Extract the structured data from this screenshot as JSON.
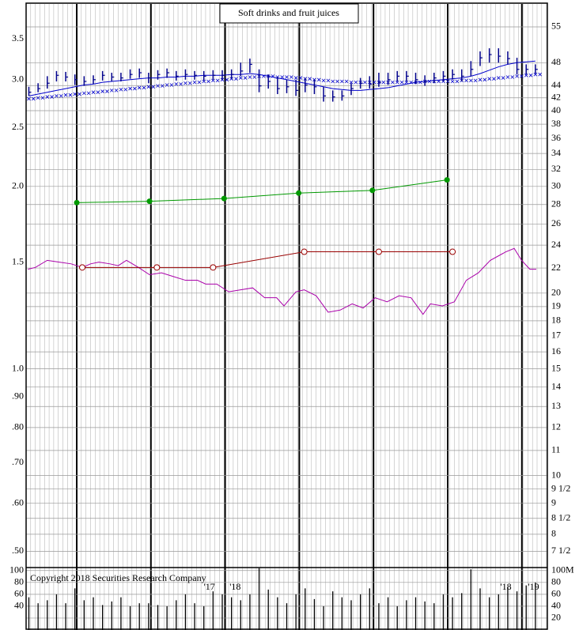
{
  "chart_data": {
    "type": "stock",
    "title": "Soft drinks and fruit juices",
    "annotation": "Copyright 2018 Securities Research Company",
    "log_scale": true,
    "grid": true,
    "xlim": [
      -0.3,
      56.3
    ],
    "xticks": [
      {
        "value": 19.6,
        "label": "'17"
      },
      {
        "value": 22.4,
        "label": "'18"
      },
      {
        "value": 51.8,
        "label": "'18"
      },
      {
        "value": 54.8,
        "label": "'19"
      }
    ],
    "ylim": [
      0.47,
      4.0
    ],
    "yticks": [
      3.5,
      {
        "value": 3,
        "label": "3.0"
      },
      2.5,
      {
        "value": 2,
        "label": "2.0"
      },
      1.5,
      {
        "value": 1,
        "label": "1.0"
      },
      {
        "value": 0.9,
        "label": ".90"
      },
      {
        "value": 0.8,
        "label": ".80"
      },
      {
        "value": 0.7,
        "label": ".70"
      },
      {
        "value": 0.6,
        "label": ".60"
      },
      {
        "value": 0.5,
        "label": ".50"
      }
    ],
    "y2lim": [
      7.05,
      60
    ],
    "y2ticks": [
      55,
      48,
      44,
      42,
      40,
      38,
      36,
      34,
      32,
      30,
      28,
      26,
      24,
      22,
      20,
      19,
      18,
      17,
      16,
      15,
      14,
      13,
      12,
      11,
      10,
      {
        "value": 9.5,
        "label": "9 1/2"
      },
      9,
      {
        "value": 8.5,
        "label": "8 1/2"
      },
      8,
      {
        "value": 7.5,
        "label": "7 1/2"
      }
    ],
    "x": [
      0,
      1,
      2,
      3,
      4,
      5,
      6,
      7,
      8,
      9,
      10,
      11,
      12,
      13,
      14,
      15,
      16,
      17,
      18,
      19,
      20,
      21,
      22,
      23,
      24,
      25,
      26,
      27,
      28,
      29,
      30,
      31,
      32,
      33,
      34,
      35,
      36,
      37,
      38,
      39,
      40,
      41,
      42,
      43,
      44,
      45,
      46,
      47,
      48,
      49,
      50,
      51,
      52,
      53,
      54,
      55
    ],
    "price": {
      "color": "#00008b",
      "high": [
        2.92,
        2.96,
        3.04,
        3.1,
        3.09,
        3.06,
        3.04,
        3.05,
        3.1,
        3.08,
        3.08,
        3.12,
        3.13,
        3.08,
        3.11,
        3.13,
        3.1,
        3.12,
        3.1,
        3.1,
        3.11,
        3.11,
        3.12,
        3.2,
        3.25,
        3.12,
        3.06,
        3.03,
        3.0,
        3.0,
        3.02,
        3.0,
        2.92,
        2.88,
        2.88,
        2.96,
        3.02,
        3.04,
        3.08,
        3.08,
        3.1,
        3.1,
        3.08,
        3.05,
        3.08,
        3.1,
        3.12,
        3.12,
        3.22,
        3.34,
        3.38,
        3.38,
        3.34,
        3.26,
        3.18,
        3.18
      ],
      "low": [
        2.82,
        2.86,
        2.9,
        2.98,
        2.98,
        2.94,
        2.93,
        2.95,
        2.99,
        2.98,
        2.98,
        3.01,
        3.02,
        2.96,
        3.0,
        3.02,
        2.99,
        3.0,
        3.0,
        2.99,
        3.0,
        3.0,
        3.01,
        3.04,
        3.08,
        2.86,
        2.9,
        2.84,
        2.85,
        2.82,
        2.86,
        2.84,
        2.76,
        2.76,
        2.77,
        2.83,
        2.9,
        2.9,
        2.92,
        2.94,
        2.98,
        2.98,
        2.95,
        2.93,
        2.96,
        2.98,
        3.0,
        2.98,
        3.04,
        3.16,
        3.2,
        3.2,
        3.18,
        3.06,
        3.06,
        3.07
      ],
      "close": [
        2.86,
        2.9,
        2.96,
        3.05,
        3.03,
        3.0,
        2.98,
        3.0,
        3.05,
        3.03,
        3.02,
        3.06,
        3.08,
        3.02,
        3.06,
        3.08,
        3.04,
        3.06,
        3.05,
        3.04,
        3.05,
        3.05,
        3.06,
        3.1,
        3.18,
        2.93,
        2.98,
        2.9,
        2.92,
        2.88,
        2.94,
        2.92,
        2.82,
        2.81,
        2.82,
        2.9,
        2.96,
        2.95,
        2.97,
        3.0,
        3.04,
        3.04,
        3.0,
        2.98,
        3.02,
        3.04,
        3.06,
        3.04,
        3.12,
        3.26,
        3.3,
        3.28,
        3.25,
        3.12,
        3.12,
        3.12
      ]
    },
    "moving_average": {
      "color": "#0000cc",
      "values": [
        2.82,
        2.84,
        2.86,
        2.88,
        2.9,
        2.92,
        2.94,
        2.95,
        2.97,
        2.98,
        2.99,
        3.0,
        3.01,
        3.02,
        3.02,
        3.03,
        3.03,
        3.04,
        3.04,
        3.05,
        3.05,
        3.05,
        3.06,
        3.06,
        3.07,
        3.06,
        3.04,
        3.02,
        3.0,
        2.98,
        2.96,
        2.94,
        2.92,
        2.9,
        2.89,
        2.88,
        2.88,
        2.89,
        2.9,
        2.91,
        2.93,
        2.95,
        2.97,
        2.98,
        2.99,
        3.0,
        3.01,
        3.02,
        3.04,
        3.07,
        3.11,
        3.15,
        3.18,
        3.2,
        3.21,
        3.22
      ]
    },
    "moving_average_2": {
      "color": "#0000cc",
      "values": [
        2.79,
        2.8,
        2.81,
        2.82,
        2.83,
        2.84,
        2.85,
        2.86,
        2.87,
        2.88,
        2.89,
        2.9,
        2.91,
        2.92,
        2.93,
        2.94,
        2.95,
        2.96,
        2.97,
        2.98,
        2.99,
        3.0,
        3.01,
        3.02,
        3.03,
        3.04,
        3.04,
        3.03,
        3.03,
        3.02,
        3.01,
        3.0,
        2.99,
        2.98,
        2.98,
        2.97,
        2.97,
        2.97,
        2.97,
        2.97,
        2.97,
        2.97,
        2.97,
        2.98,
        2.98,
        2.98,
        2.98,
        2.99,
        2.99,
        3.0,
        3.01,
        3.02,
        3.03,
        3.04,
        3.05,
        3.06
      ]
    },
    "earnings": {
      "color": "#009900",
      "x": [
        5.2,
        13.1,
        21.2,
        29.3,
        37.3,
        45.4
      ],
      "values": [
        1.88,
        1.89,
        1.91,
        1.95,
        1.97,
        2.05
      ]
    },
    "dividends": {
      "color": "#990000",
      "x": [
        5.8,
        13.9,
        20.0,
        29.9,
        38.0,
        46.0
      ],
      "values": [
        1.47,
        1.47,
        1.47,
        1.56,
        1.56,
        1.56
      ]
    },
    "relative_strength": {
      "color": "#aa00aa",
      "x": [
        -0.1,
        0.7,
        2.0,
        3.3,
        4.6,
        5.8,
        6.7,
        7.6,
        8.8,
        9.7,
        10.6,
        11.9,
        13.1,
        14.4,
        15.7,
        17.0,
        18.3,
        19.2,
        20.4,
        21.7,
        23.0,
        24.3,
        25.6,
        26.9,
        27.7,
        29.0,
        29.9,
        31.2,
        32.5,
        33.8,
        35.1,
        36.3,
        37.6,
        38.9,
        40.2,
        41.5,
        42.8,
        43.6,
        44.9,
        46.2,
        47.5,
        48.8,
        50.1,
        51.8,
        52.7,
        53.5,
        54.4,
        55.1
      ],
      "values": [
        1.46,
        1.47,
        1.51,
        1.5,
        1.49,
        1.47,
        1.49,
        1.5,
        1.49,
        1.48,
        1.51,
        1.47,
        1.43,
        1.44,
        1.42,
        1.4,
        1.4,
        1.38,
        1.38,
        1.34,
        1.35,
        1.36,
        1.31,
        1.31,
        1.27,
        1.34,
        1.35,
        1.32,
        1.24,
        1.25,
        1.28,
        1.26,
        1.31,
        1.29,
        1.32,
        1.31,
        1.23,
        1.28,
        1.27,
        1.29,
        1.4,
        1.44,
        1.51,
        1.56,
        1.58,
        1.51,
        1.46,
        1.46
      ]
    },
    "volume": {
      "color": "#000000",
      "values": [
        55,
        45,
        50,
        60,
        45,
        70,
        50,
        55,
        42,
        48,
        55,
        40,
        45,
        45,
        42,
        40,
        50,
        60,
        45,
        40,
        65,
        60,
        55,
        50,
        60,
        104,
        68,
        55,
        45,
        60,
        70,
        52,
        40,
        65,
        55,
        50,
        60,
        70,
        45,
        55,
        40,
        50,
        55,
        48,
        45,
        60,
        55,
        62,
        102,
        70,
        55,
        60,
        72,
        65,
        75,
        80
      ],
      "ylim": [
        0,
        105
      ],
      "yticks": [
        100,
        80,
        60,
        40
      ],
      "y2ticks": [
        {
          "value": 100,
          "label": "100M"
        },
        80,
        60,
        40,
        20
      ]
    }
  }
}
